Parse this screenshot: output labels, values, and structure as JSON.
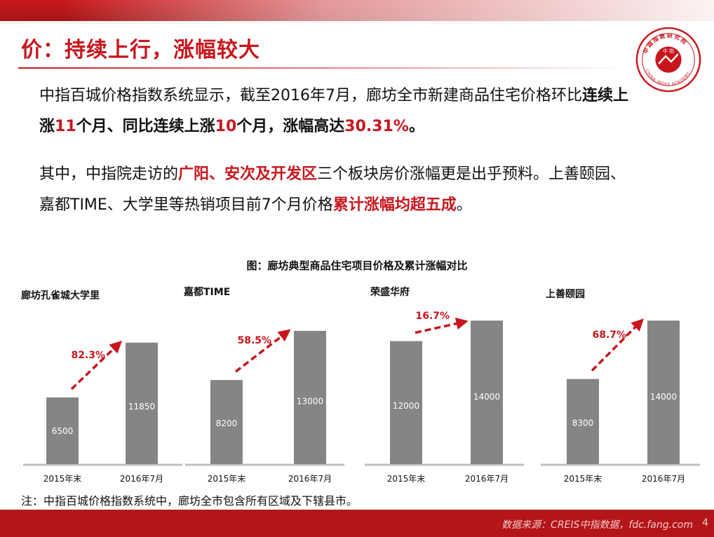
{
  "header": {
    "title": "价：持续上行，涨幅较大"
  },
  "logo": {
    "icon": "china-index-academy-seal-icon",
    "text_top": "中国指数研究院",
    "text_bottom": "CHINA INDEX ACADEMY",
    "center": "中 指",
    "color": "#c8161d"
  },
  "paragraph1": {
    "line1_a": "中指百城价格指数系统显示，截至2016年7月，廊坊全市新建商品住宅价格环比",
    "line1_b": "连续上",
    "line2_a": "涨",
    "line2_b": "11",
    "line2_c": "个月、同比连续上涨",
    "line2_d": "10",
    "line2_e": "个月，涨幅高达",
    "line2_f": "30.31%",
    "line2_g": "。"
  },
  "paragraph2": {
    "line1_a": "其中，中指院走访的",
    "line1_b": "广阳、安次及开发区",
    "line1_c": "三个板块房价涨幅更是出乎预料。上善颐园、",
    "line2_a": "嘉都TIME、大学里等热销项目前7个月价格",
    "line2_b": "累计涨幅均超五成",
    "line2_c": "。"
  },
  "chart_data": [
    {
      "type": "bar",
      "title": "廊坊孔雀城大学里",
      "categories": [
        "2015年末",
        "2016年7月"
      ],
      "values": [
        6500,
        11850
      ],
      "value_labels": [
        "6500",
        "11850"
      ],
      "change_label": "82.3%"
    },
    {
      "type": "bar",
      "title": "嘉都TIME",
      "categories": [
        "2015年末",
        "2016年7月"
      ],
      "values": [
        8200,
        13000
      ],
      "value_labels": [
        "8200",
        "13000"
      ],
      "change_label": "58.5%"
    },
    {
      "type": "bar",
      "title": "荣盛华府",
      "categories": [
        "2015年末",
        "2016年7月"
      ],
      "values": [
        12000,
        14000
      ],
      "value_labels": [
        "12000",
        "14000"
      ],
      "change_label": "16.7%"
    },
    {
      "type": "bar",
      "title": "上善颐园",
      "categories": [
        "2015年末",
        "2016年7月"
      ],
      "values": [
        8300,
        14000
      ],
      "value_labels": [
        "8300",
        "14000"
      ],
      "change_label": "68.7%"
    }
  ],
  "chart_group_title": "图：廊坊典型商品住宅项目价格及累计涨幅对比",
  "colors": {
    "bar": "#858585",
    "accent": "#c8161d",
    "footer": "#b31518"
  },
  "footer": {
    "note": "注：中指百城价格指数系统中，廊坊全市包含所有区域及下辖县市。",
    "source": "数据来源：CREIS中指数据，fdc.fang.com",
    "page": "4"
  }
}
